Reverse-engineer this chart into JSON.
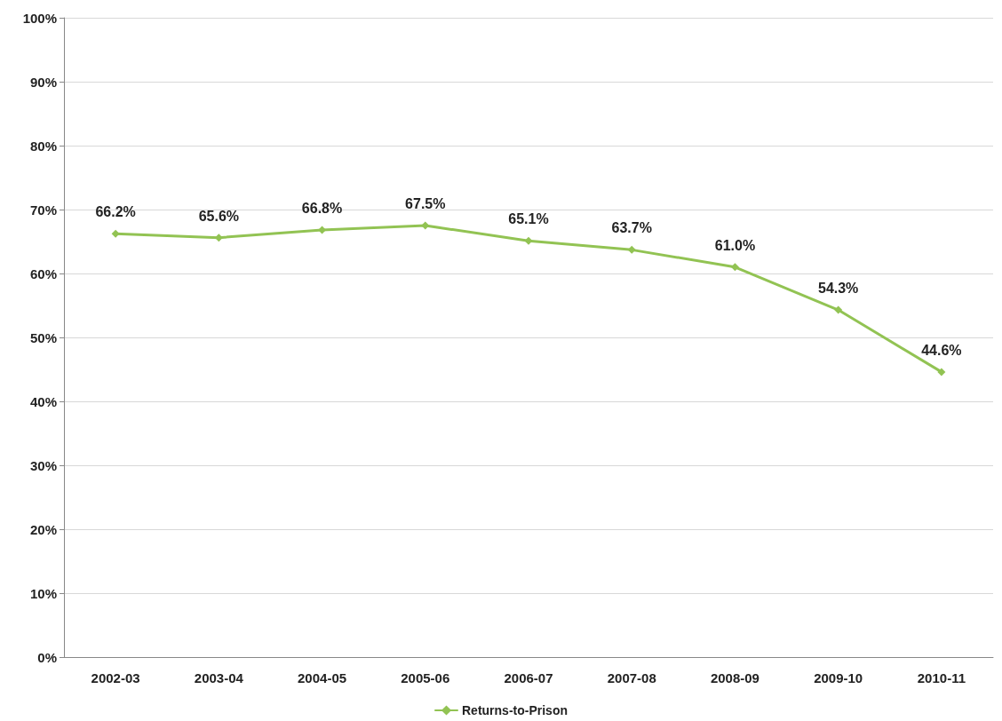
{
  "chart_data": {
    "type": "line",
    "categories": [
      "2002-03",
      "2003-04",
      "2004-05",
      "2005-06",
      "2006-07",
      "2007-08",
      "2008-09",
      "2009-10",
      "2010-11"
    ],
    "series": [
      {
        "name": "Returns-to-Prison",
        "color": "#92c353",
        "values": [
          66.2,
          65.6,
          66.8,
          67.5,
          65.1,
          63.7,
          61.0,
          54.3,
          44.6
        ],
        "value_labels": [
          "66.2%",
          "65.6%",
          "66.8%",
          "67.5%",
          "65.1%",
          "63.7%",
          "61.0%",
          "54.3%",
          "44.6%"
        ]
      }
    ],
    "ylim": [
      0,
      100
    ],
    "yticks": [
      {
        "value": 0,
        "label": "0%"
      },
      {
        "value": 10,
        "label": "10%"
      },
      {
        "value": 20,
        "label": "20%"
      },
      {
        "value": 30,
        "label": "30%"
      },
      {
        "value": 40,
        "label": "40%"
      },
      {
        "value": 50,
        "label": "50%"
      },
      {
        "value": 60,
        "label": "60%"
      },
      {
        "value": 70,
        "label": "70%"
      },
      {
        "value": 80,
        "label": "80%"
      },
      {
        "value": 90,
        "label": "90%"
      },
      {
        "value": 100,
        "label": "100%"
      }
    ],
    "grid": "y",
    "legend": "bottom",
    "marker": "diamond",
    "line_style": "solid"
  }
}
